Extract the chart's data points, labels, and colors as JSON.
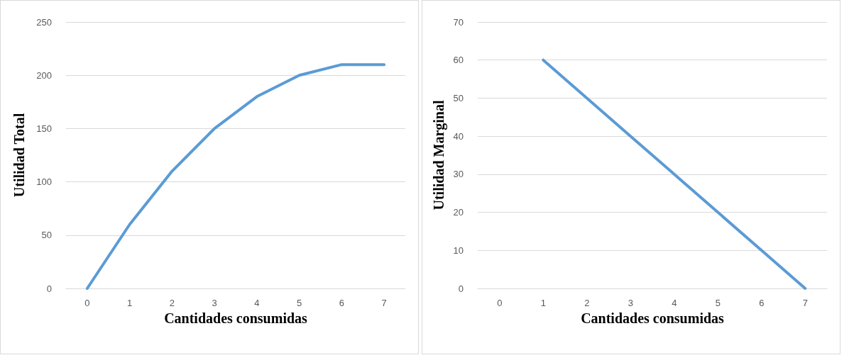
{
  "chart_data": [
    {
      "type": "line",
      "categories": [
        "0",
        "1",
        "2",
        "3",
        "4",
        "5",
        "6",
        "7"
      ],
      "values": [
        0,
        60,
        110,
        150,
        180,
        200,
        210,
        210
      ],
      "color": "#5b9bd5",
      "xlabel": "Cantidades consumidas",
      "ylabel": "Utilidad Total",
      "ylim": [
        0,
        250
      ],
      "yticks": [
        0,
        50,
        100,
        150,
        200,
        250
      ],
      "grid": "y",
      "marker": "none",
      "line_style": "solid"
    },
    {
      "type": "line",
      "categories": [
        "0",
        "1",
        "2",
        "3",
        "4",
        "5",
        "6",
        "7"
      ],
      "values": [
        null,
        60,
        50,
        40,
        30,
        20,
        10,
        0
      ],
      "color": "#5b9bd5",
      "xlabel": "Cantidades consumidas",
      "ylabel": "Utilidad Marginal",
      "ylim": [
        0,
        70
      ],
      "yticks": [
        0,
        10,
        20,
        30,
        40,
        50,
        60,
        70
      ],
      "grid": "y",
      "marker": "none",
      "line_style": "solid"
    }
  ]
}
